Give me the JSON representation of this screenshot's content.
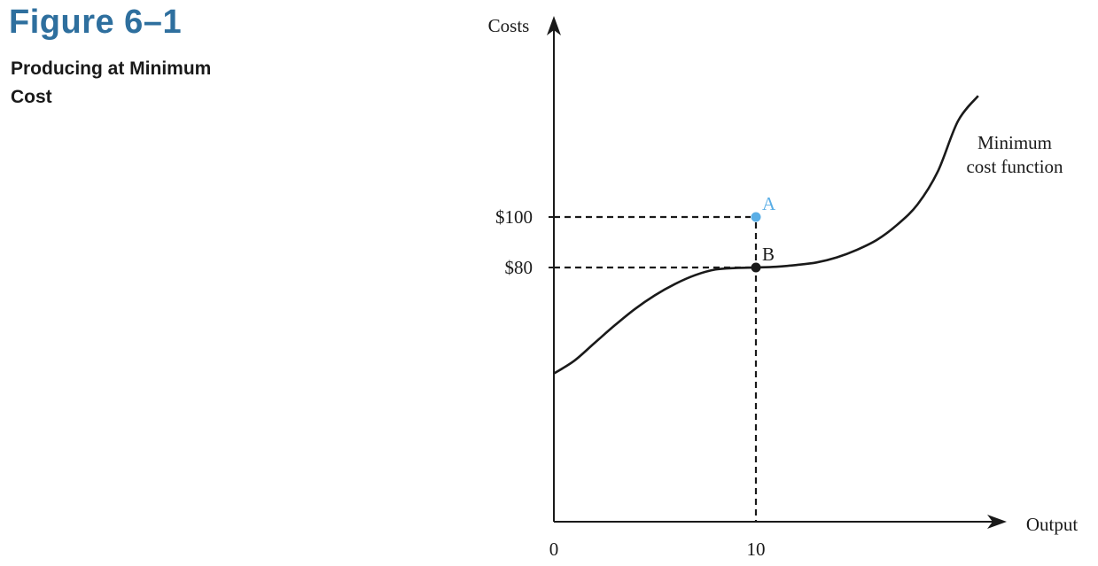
{
  "figure": {
    "number": "Figure 6–1",
    "title": "Producing at Minimum Cost"
  },
  "chart_data": {
    "type": "line",
    "title": "Producing at Minimum Cost",
    "xlabel": "Output",
    "ylabel": "Costs",
    "x_ticks": [
      {
        "value": 0,
        "label": "0"
      },
      {
        "value": 10,
        "label": "10"
      }
    ],
    "y_ticks": [
      {
        "value": 80,
        "label": "$80"
      },
      {
        "value": 100,
        "label": "$100"
      }
    ],
    "xlim": [
      0,
      22
    ],
    "ylim": [
      0,
      185
    ],
    "series": [
      {
        "name": "Minimum cost function",
        "x": [
          0,
          1,
          2,
          3,
          4,
          5,
          6,
          7,
          8,
          9,
          10,
          11,
          12,
          13,
          14,
          15,
          16,
          17,
          18,
          19,
          20,
          21
        ],
        "y": [
          38,
          43,
          50,
          57,
          63.5,
          69,
          73.5,
          77,
          79.2,
          79.8,
          80,
          80.3,
          81,
          82,
          84,
          87,
          91,
          97,
          105,
          118,
          138,
          148
        ]
      }
    ],
    "points": [
      {
        "label": "A",
        "x": 10,
        "y": 100,
        "color": "#5aaee6"
      },
      {
        "label": "B",
        "x": 10,
        "y": 80,
        "color": "#1a1a1a"
      }
    ],
    "annotations": [
      "Minimum",
      "cost function"
    ],
    "colors": {
      "axis": "#1a1a1a",
      "curve": "#1a1a1a",
      "point_a": "#5aaee6",
      "point_b": "#1a1a1a"
    }
  }
}
